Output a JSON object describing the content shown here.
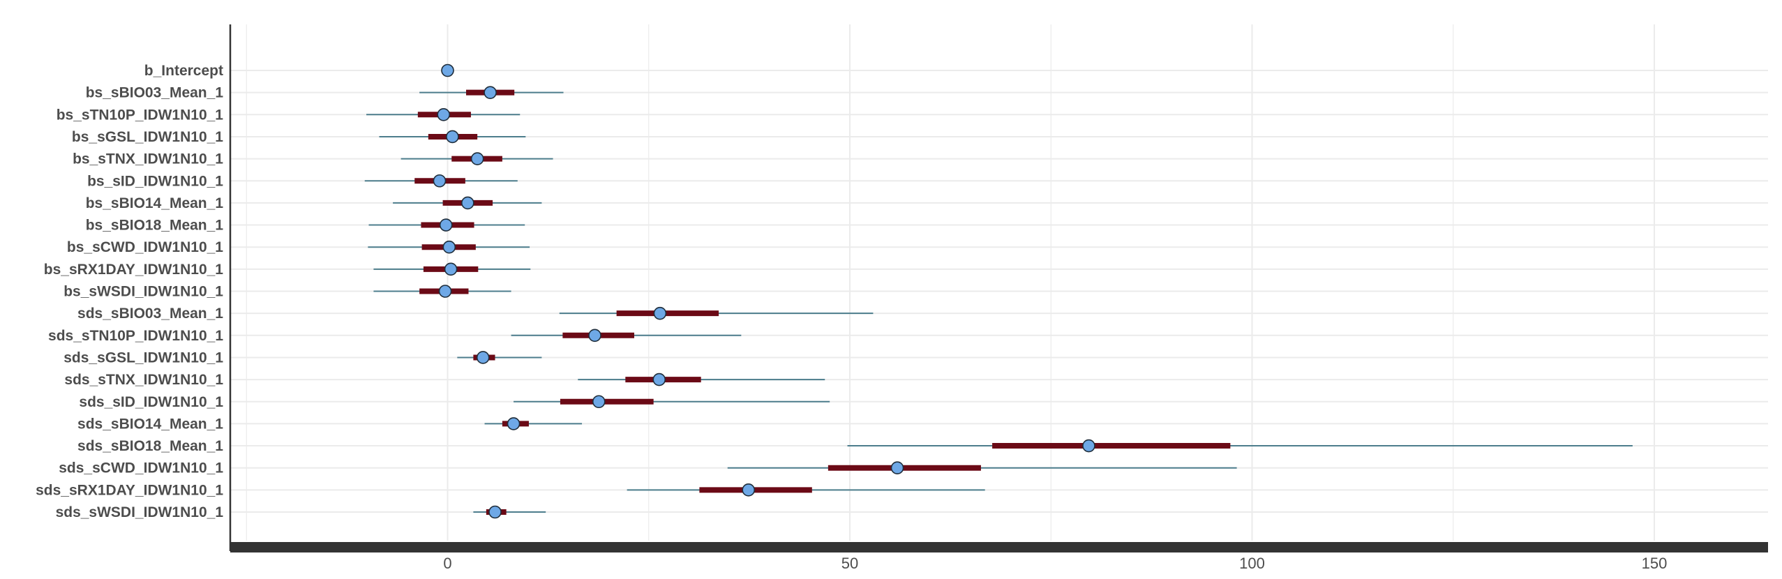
{
  "chart_data": {
    "type": "interval",
    "title": "",
    "xlabel": "",
    "ylabel": "",
    "xlim": [
      -27,
      164
    ],
    "x_ticks": [
      0,
      50,
      100,
      150
    ],
    "x_tick_labels": [
      "0",
      "50",
      "100",
      "150"
    ],
    "grid": true,
    "colors": {
      "outer_line": "#4c7d8c",
      "inner_bar": "#6b0a16",
      "point_fill": "#6ea8e6",
      "point_stroke": "#1f2d3a",
      "grid": "#ebebeb",
      "axis": "#333333"
    },
    "parameters": [
      {
        "name": "b_Intercept",
        "ll": 0.0,
        "l": 0.0,
        "m": 0.0,
        "h": 0.0,
        "hh": 0.0
      },
      {
        "name": "bs_sBIO03_Mean_1",
        "ll": -3.5,
        "l": 2.3,
        "m": 5.3,
        "h": 8.3,
        "hh": 14.4
      },
      {
        "name": "bs_sTN10P_IDW1N10_1",
        "ll": -10.1,
        "l": -3.7,
        "m": -0.5,
        "h": 2.9,
        "hh": 9.0
      },
      {
        "name": "bs_sGSL_IDW1N10_1",
        "ll": -8.5,
        "l": -2.4,
        "m": 0.6,
        "h": 3.7,
        "hh": 9.7
      },
      {
        "name": "bs_sTNX_IDW1N10_1",
        "ll": -5.8,
        "l": 0.5,
        "m": 3.7,
        "h": 6.8,
        "hh": 13.1
      },
      {
        "name": "bs_sID_IDW1N10_1",
        "ll": -10.3,
        "l": -4.1,
        "m": -1.0,
        "h": 2.2,
        "hh": 8.7
      },
      {
        "name": "bs_sBIO14_Mean_1",
        "ll": -6.8,
        "l": -0.6,
        "m": 2.5,
        "h": 5.6,
        "hh": 11.7
      },
      {
        "name": "bs_sBIO18_Mean_1",
        "ll": -9.8,
        "l": -3.3,
        "m": -0.2,
        "h": 3.3,
        "hh": 9.6
      },
      {
        "name": "bs_sCWD_IDW1N10_1",
        "ll": -9.9,
        "l": -3.2,
        "m": 0.2,
        "h": 3.5,
        "hh": 10.2
      },
      {
        "name": "bs_sRX1DAY_IDW1N10_1",
        "ll": -9.2,
        "l": -3.0,
        "m": 0.4,
        "h": 3.8,
        "hh": 10.3
      },
      {
        "name": "bs_sWSDI_IDW1N10_1",
        "ll": -9.2,
        "l": -3.5,
        "m": -0.3,
        "h": 2.6,
        "hh": 7.9
      },
      {
        "name": "sds_sBIO03_Mean_1",
        "ll": 13.9,
        "l": 21.0,
        "m": 26.4,
        "h": 33.7,
        "hh": 52.9
      },
      {
        "name": "sds_sTN10P_IDW1N10_1",
        "ll": 7.9,
        "l": 14.3,
        "m": 18.3,
        "h": 23.2,
        "hh": 36.5
      },
      {
        "name": "sds_sGSL_IDW1N10_1",
        "ll": 1.2,
        "l": 3.2,
        "m": 4.4,
        "h": 5.9,
        "hh": 11.7
      },
      {
        "name": "sds_sTNX_IDW1N10_1",
        "ll": 16.2,
        "l": 22.1,
        "m": 26.3,
        "h": 31.5,
        "hh": 46.9
      },
      {
        "name": "sds_sID_IDW1N10_1",
        "ll": 8.2,
        "l": 14.0,
        "m": 18.8,
        "h": 25.6,
        "hh": 47.5
      },
      {
        "name": "sds_sBIO14_Mean_1",
        "ll": 4.6,
        "l": 6.8,
        "m": 8.2,
        "h": 10.1,
        "hh": 16.7
      },
      {
        "name": "sds_sBIO18_Mean_1",
        "ll": 49.7,
        "l": 67.7,
        "m": 79.7,
        "h": 97.3,
        "hh": 147.3
      },
      {
        "name": "sds_sCWD_IDW1N10_1",
        "ll": 34.8,
        "l": 47.3,
        "m": 55.9,
        "h": 66.3,
        "hh": 98.1
      },
      {
        "name": "sds_sRX1DAY_IDW1N10_1",
        "ll": 22.3,
        "l": 31.3,
        "m": 37.4,
        "h": 45.3,
        "hh": 66.8
      },
      {
        "name": "sds_sWSDI_IDW1N10_1",
        "ll": 3.2,
        "l": 4.8,
        "m": 5.9,
        "h": 7.3,
        "hh": 12.2
      }
    ]
  }
}
